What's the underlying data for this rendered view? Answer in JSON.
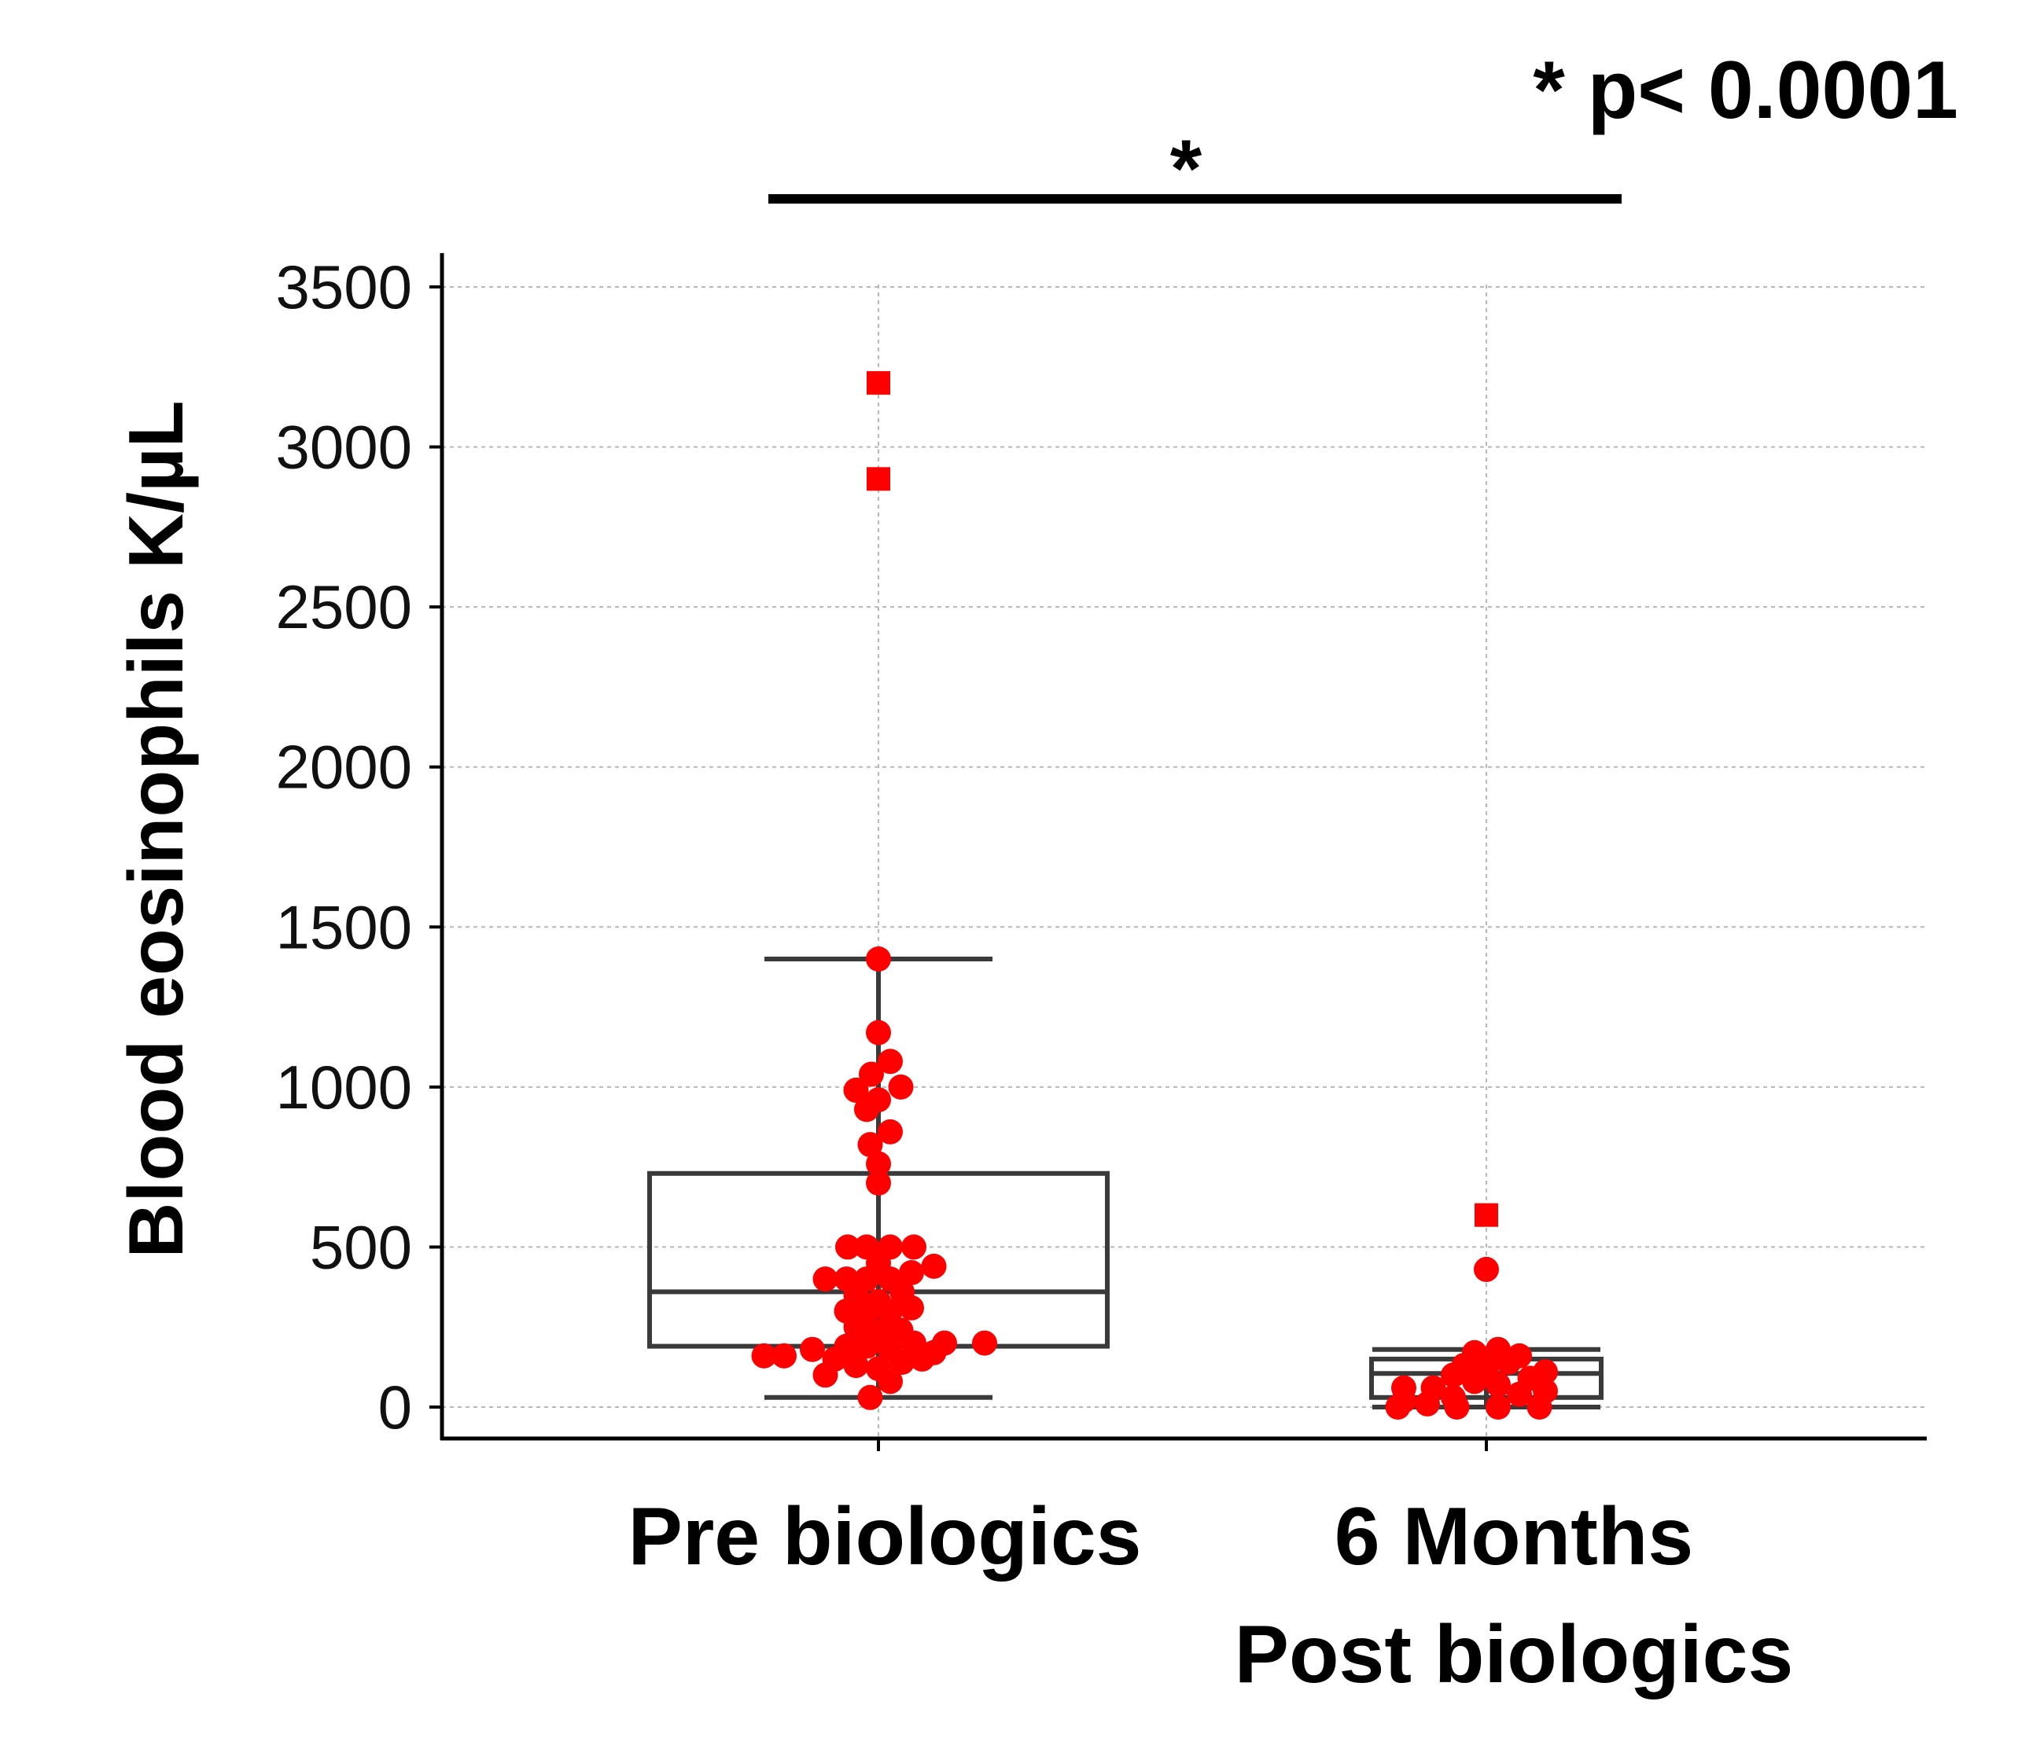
{
  "chart_data": {
    "type": "box",
    "ylabel": "Blood eosinophils K/µL",
    "ylim": [
      -100,
      3600
    ],
    "yticks": [
      "0",
      "500",
      "1000",
      "1500",
      "2000",
      "2500",
      "3000",
      "3500"
    ],
    "ytick_values": [
      0,
      500,
      1000,
      1500,
      2000,
      2500,
      3000,
      3500
    ],
    "categories": [
      {
        "line1": "Pre biologics",
        "line2": ""
      },
      {
        "line1": "6 Months",
        "line2": "Post biologics"
      }
    ],
    "grid": true,
    "point_color": "#ff0000",
    "box_color": "#3a3a3a",
    "significance": {
      "marker": "*",
      "legend_text": "* p< 0.0001",
      "between": [
        0,
        1
      ]
    },
    "groups": [
      {
        "name": "Pre biologics",
        "q1": 190,
        "median": 360,
        "q3": 730,
        "whisker_low": 30,
        "whisker_high": 1400,
        "outliers": [
          3200,
          2900
        ],
        "points": [
          {
            "y": 1400,
            "dx": 0
          },
          {
            "y": 1170,
            "dx": 0
          },
          {
            "y": 1080,
            "dx": 0.1
          },
          {
            "y": 1040,
            "dx": -0.06
          },
          {
            "y": 1000,
            "dx": 0.19
          },
          {
            "y": 990,
            "dx": -0.19
          },
          {
            "y": 960,
            "dx": 0
          },
          {
            "y": 930,
            "dx": -0.1
          },
          {
            "y": 860,
            "dx": 0.1
          },
          {
            "y": 820,
            "dx": -0.07
          },
          {
            "y": 760,
            "dx": 0
          },
          {
            "y": 700,
            "dx": 0
          },
          {
            "y": 500,
            "dx": -0.26
          },
          {
            "y": 500,
            "dx": -0.1
          },
          {
            "y": 500,
            "dx": 0.1
          },
          {
            "y": 500,
            "dx": 0.3
          },
          {
            "y": 440,
            "dx": 0.47
          },
          {
            "y": 450,
            "dx": 0
          },
          {
            "y": 420,
            "dx": 0.28
          },
          {
            "y": 400,
            "dx": -0.45
          },
          {
            "y": 400,
            "dx": -0.27
          },
          {
            "y": 400,
            "dx": -0.1
          },
          {
            "y": 400,
            "dx": 0.1
          },
          {
            "y": 360,
            "dx": 0.2
          },
          {
            "y": 350,
            "dx": -0.19
          },
          {
            "y": 330,
            "dx": 0
          },
          {
            "y": 310,
            "dx": 0.28
          },
          {
            "y": 300,
            "dx": -0.27
          },
          {
            "y": 300,
            "dx": 0.1
          },
          {
            "y": 290,
            "dx": -0.1
          },
          {
            "y": 260,
            "dx": 0.1
          },
          {
            "y": 250,
            "dx": -0.19
          },
          {
            "y": 240,
            "dx": 0.19
          },
          {
            "y": 230,
            "dx": 0
          },
          {
            "y": 200,
            "dx": 0.9
          },
          {
            "y": 200,
            "dx": 0.56
          },
          {
            "y": 200,
            "dx": 0.3
          },
          {
            "y": 190,
            "dx": -0.27
          },
          {
            "y": 190,
            "dx": -0.1
          },
          {
            "y": 180,
            "dx": -0.56
          },
          {
            "y": 180,
            "dx": 0.1
          },
          {
            "y": 170,
            "dx": 0.47
          },
          {
            "y": 160,
            "dx": -0.8
          },
          {
            "y": 160,
            "dx": -0.97
          },
          {
            "y": 150,
            "dx": -0.37
          },
          {
            "y": 150,
            "dx": 0.37
          },
          {
            "y": 140,
            "dx": 0.2
          },
          {
            "y": 130,
            "dx": -0.19
          },
          {
            "y": 120,
            "dx": 0
          },
          {
            "y": 100,
            "dx": -0.45
          },
          {
            "y": 80,
            "dx": 0.1
          },
          {
            "y": 30,
            "dx": -0.07
          }
        ]
      },
      {
        "name": "6 Months Post biologics",
        "q1": 30,
        "median": 105,
        "q3": 150,
        "whisker_low": 0,
        "whisker_high": 180,
        "outliers": [
          600
        ],
        "points": [
          {
            "y": 430,
            "dx": 0
          },
          {
            "y": 180,
            "dx": 0.1
          },
          {
            "y": 170,
            "dx": -0.1
          },
          {
            "y": 160,
            "dx": 0.28
          },
          {
            "y": 140,
            "dx": 0.19
          },
          {
            "y": 130,
            "dx": -0.19
          },
          {
            "y": 120,
            "dx": 0
          },
          {
            "y": 110,
            "dx": 0.5
          },
          {
            "y": 100,
            "dx": -0.28
          },
          {
            "y": 90,
            "dx": 0.37
          },
          {
            "y": 80,
            "dx": -0.1
          },
          {
            "y": 70,
            "dx": 0.1
          },
          {
            "y": 60,
            "dx": -0.45
          },
          {
            "y": 60,
            "dx": -0.7
          },
          {
            "y": 50,
            "dx": 0.5
          },
          {
            "y": 40,
            "dx": 0.28
          },
          {
            "y": 30,
            "dx": -0.28
          },
          {
            "y": 20,
            "dx": -0.7
          },
          {
            "y": 10,
            "dx": -0.5
          },
          {
            "y": 0,
            "dx": -0.75
          },
          {
            "y": 0,
            "dx": -0.25
          },
          {
            "y": 0,
            "dx": 0.1
          },
          {
            "y": 0,
            "dx": 0.45
          }
        ]
      }
    ]
  }
}
